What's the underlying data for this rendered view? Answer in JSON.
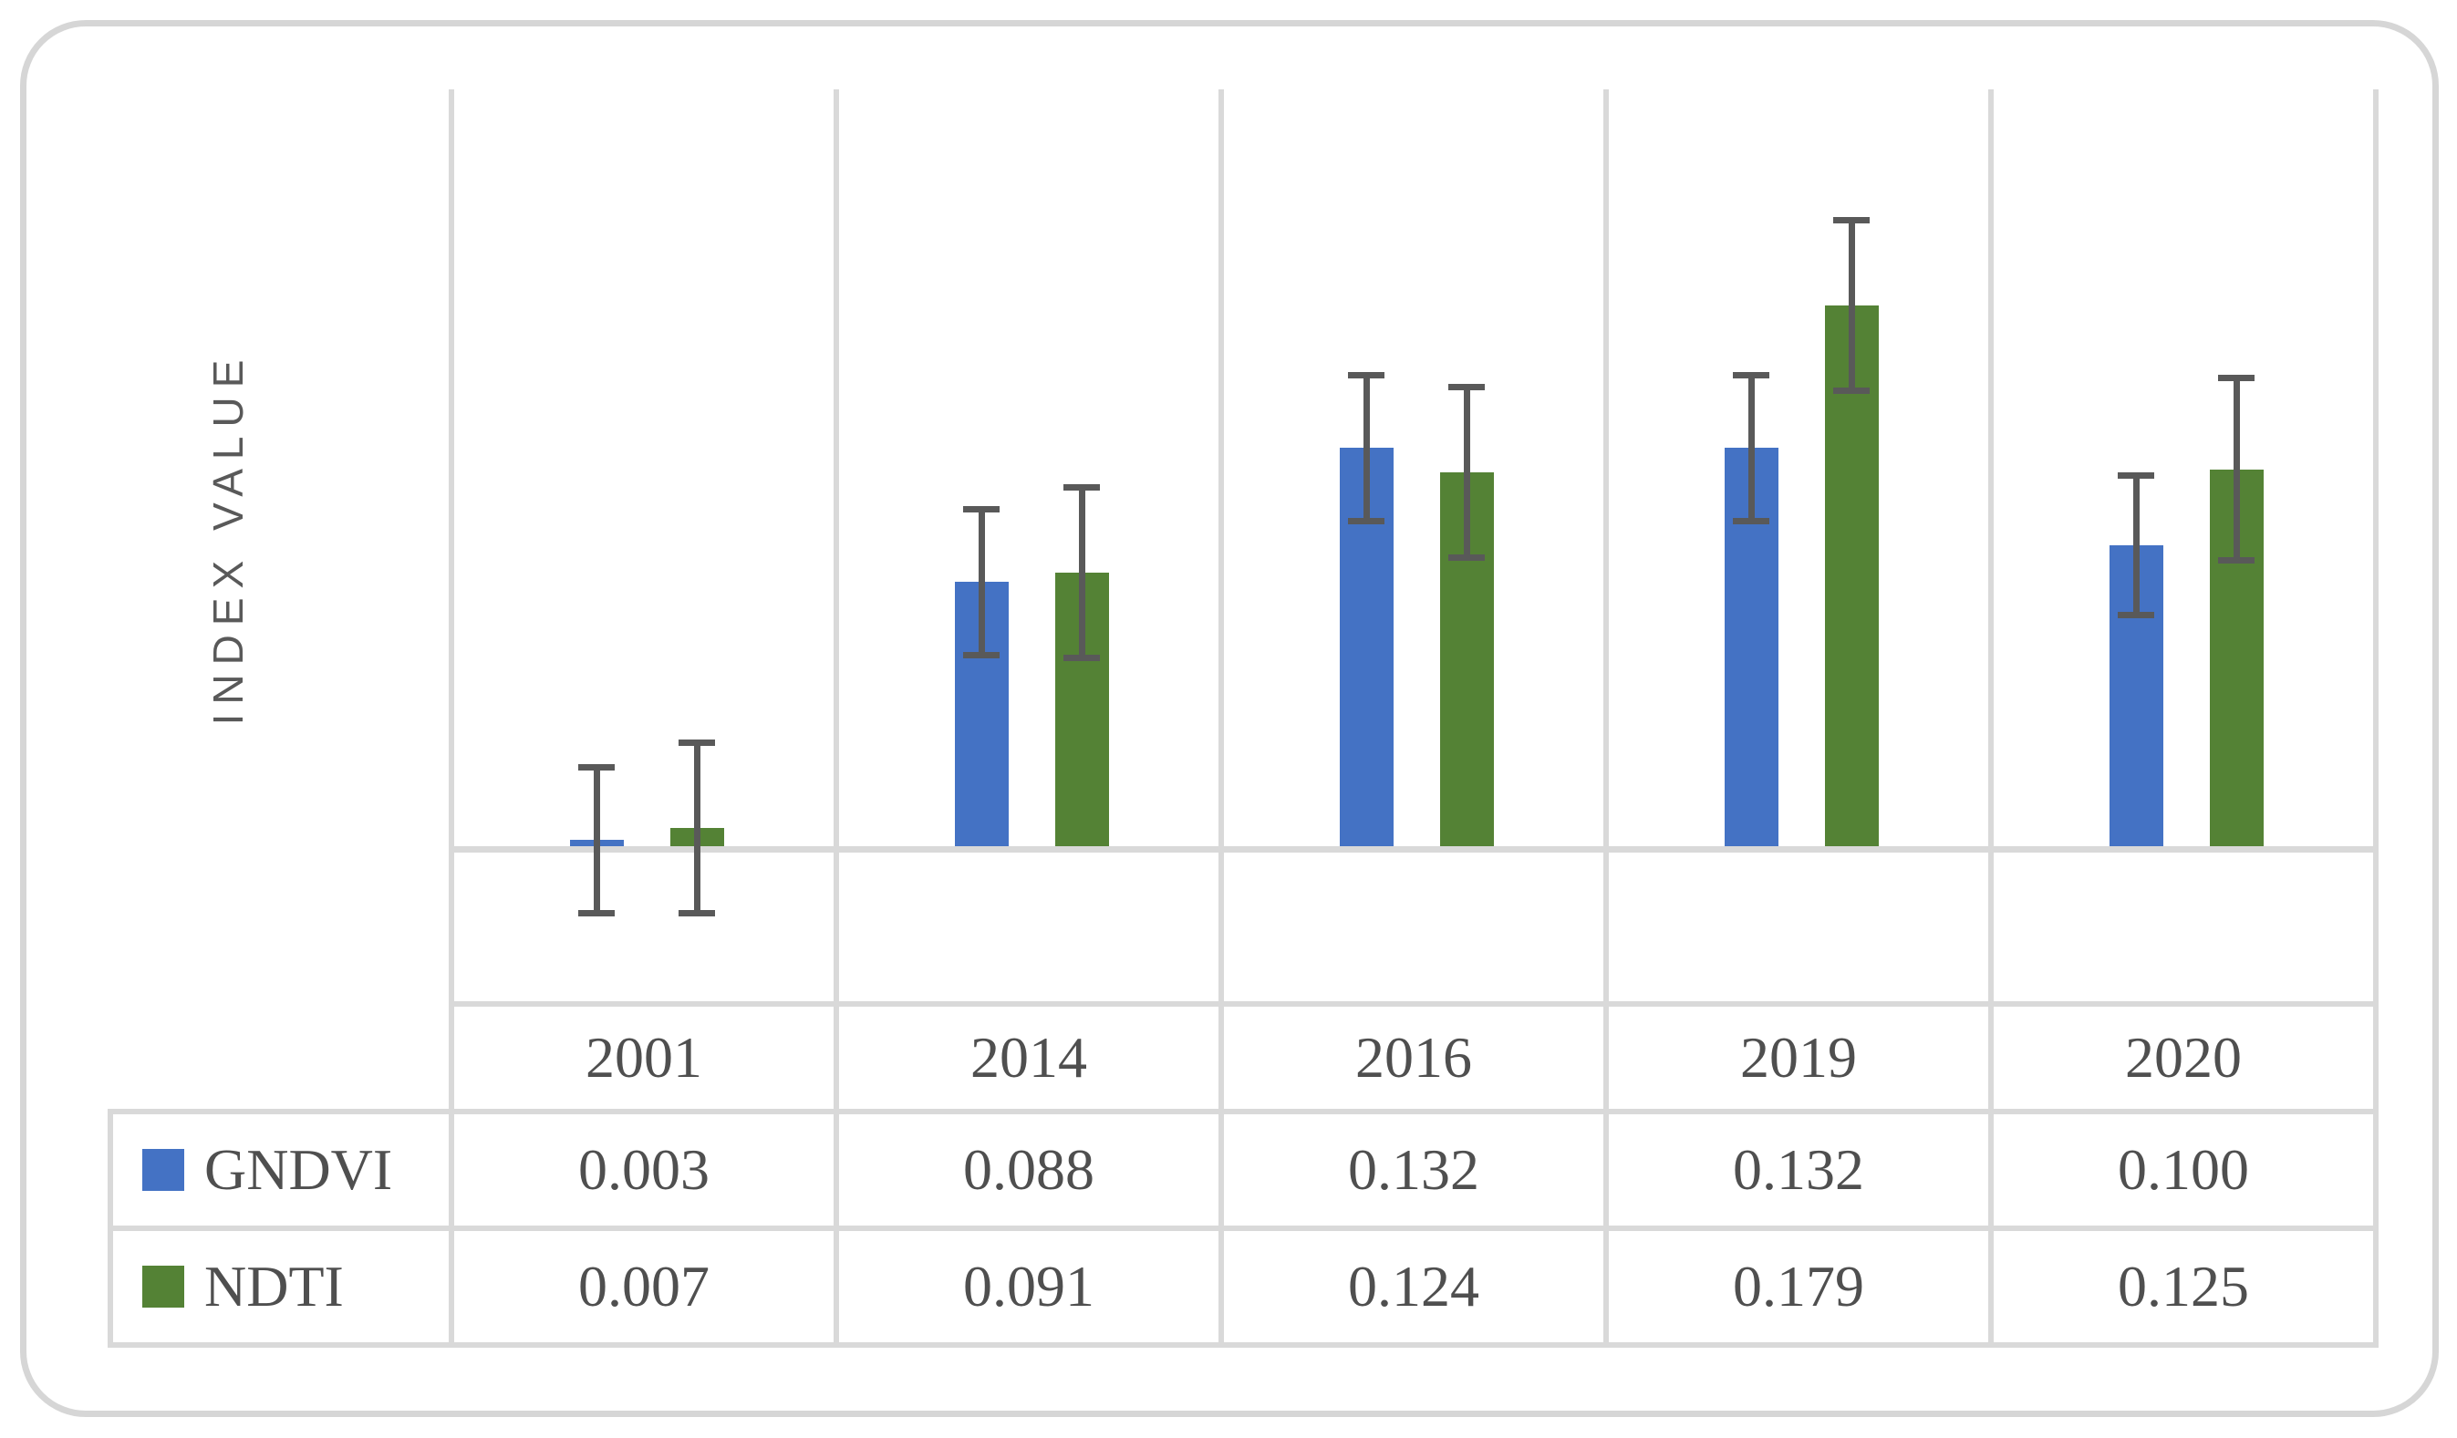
{
  "chart_data": {
    "type": "bar",
    "categories": [
      "2001",
      "2014",
      "2016",
      "2019",
      "2020"
    ],
    "series": [
      {
        "name": "GNDVI",
        "color": "#4472C4",
        "values": [
          0.003,
          0.088,
          0.132,
          0.132,
          0.1
        ],
        "errors": [
          0.024,
          0.024,
          0.024,
          0.024,
          0.023
        ]
      },
      {
        "name": "NDTI",
        "color": "#548235",
        "values": [
          0.007,
          0.091,
          0.124,
          0.179,
          0.125
        ],
        "errors": [
          0.028,
          0.028,
          0.028,
          0.028,
          0.03
        ]
      }
    ],
    "title": "",
    "xlabel": "",
    "ylabel": "INDEX VALUE",
    "ylim": [
      -0.05,
      0.25
    ],
    "grid": "vertical-category-separators",
    "legend_position": "table-left",
    "error_bars": "estimated-from-pixels"
  },
  "table": {
    "gndvi_values": [
      "0.003",
      "0.088",
      "0.132",
      "0.132",
      "0.100"
    ],
    "ndti_values": [
      "0.007",
      "0.091",
      "0.124",
      "0.179",
      "0.125"
    ]
  },
  "colors": {
    "frame_border": "#d6d6d6",
    "grid_and_table_border": "#d9d9d9",
    "error_bar": "#595959",
    "text": "#4f4f4f",
    "axis_title": "#595959"
  }
}
